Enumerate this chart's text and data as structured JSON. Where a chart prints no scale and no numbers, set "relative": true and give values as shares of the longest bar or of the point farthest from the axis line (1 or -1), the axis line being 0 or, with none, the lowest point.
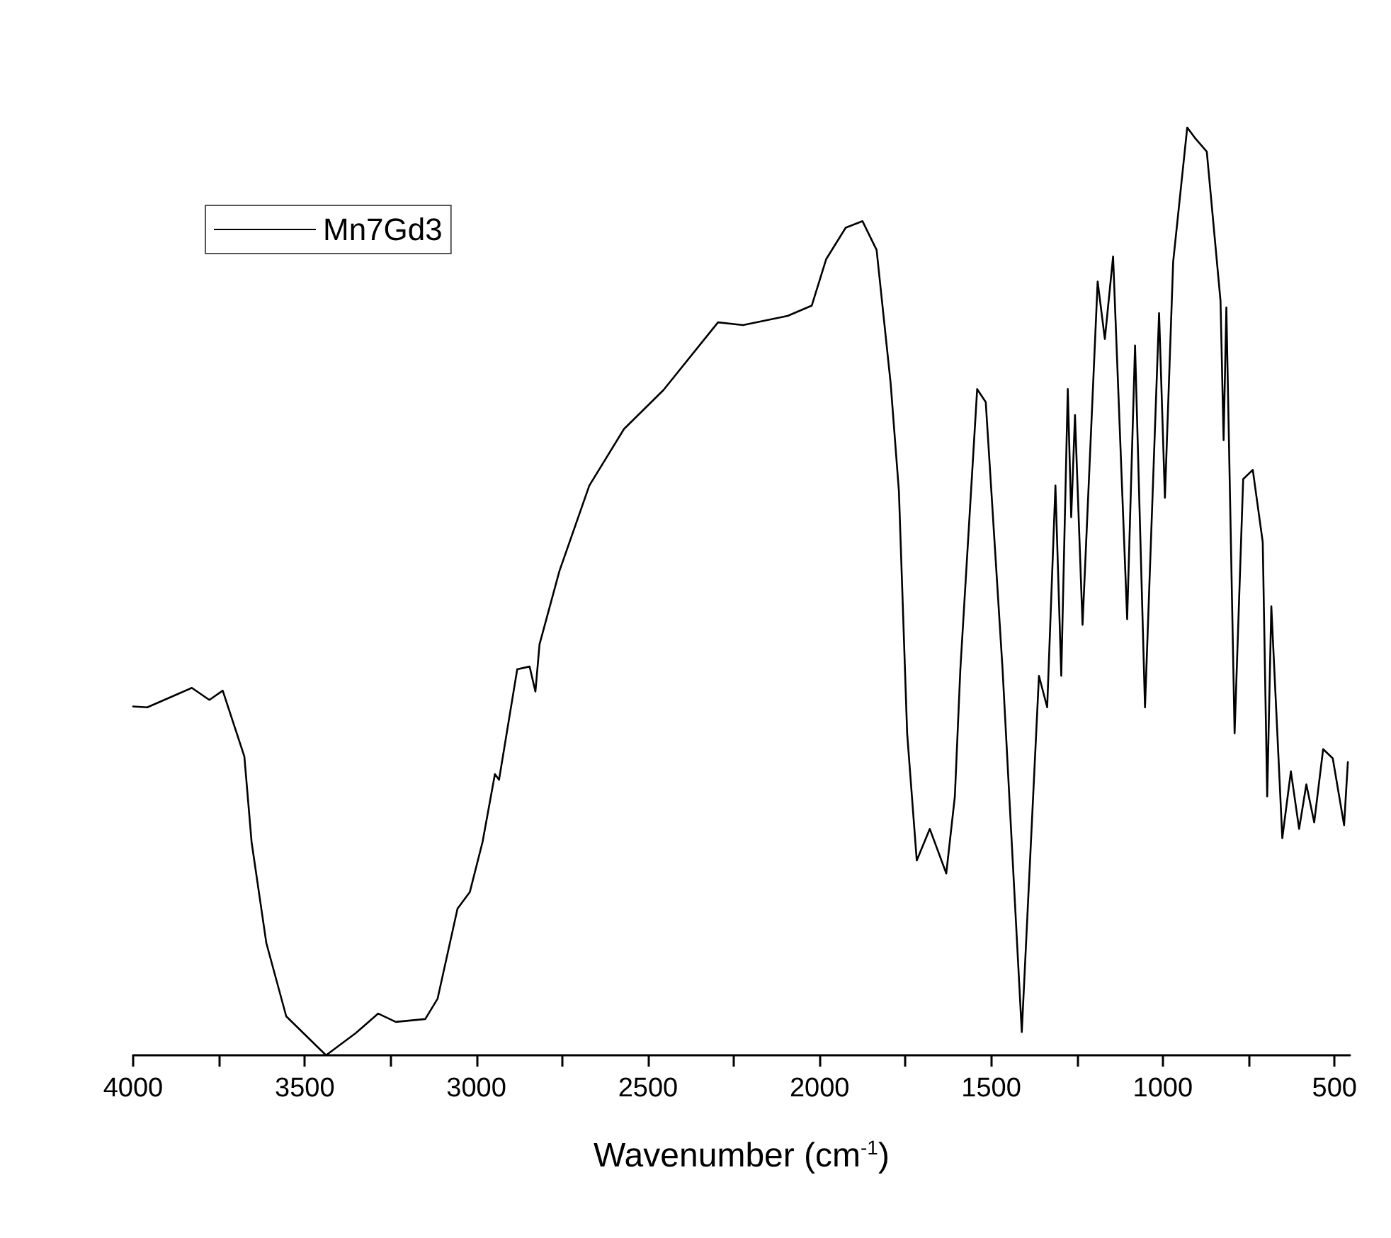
{
  "chart_data": {
    "type": "line",
    "xlabel": "Wavenumber (cm$^{-1}$)",
    "relative": true,
    "legend": "top left",
    "grid": false,
    "marker": "none",
    "line_style": "solid",
    "xlim": [
      4000,
      455
    ],
    "xticks": [
      4000,
      {
        "value": 3750,
        "label": null
      },
      3500,
      {
        "value": 3250,
        "label": null
      },
      3000,
      {
        "value": 2750,
        "label": null
      },
      2500,
      {
        "value": 2250,
        "label": null
      },
      2000,
      {
        "value": 1750,
        "label": null
      },
      1500,
      {
        "value": 1250,
        "label": null
      },
      1000,
      {
        "value": 750,
        "label": null
      },
      500
    ],
    "series": [
      {
        "name": "Mn7Gd3",
        "color": "#000000",
        "x": [
          4000,
          3959,
          3829,
          3778,
          3739,
          3676,
          3655,
          3612,
          3554,
          3438,
          3351,
          3286,
          3235,
          3149,
          3113,
          3055,
          3019,
          2982,
          2946,
          2934,
          2881,
          2845,
          2828,
          2816,
          2758,
          2671,
          2570,
          2455,
          2296,
          2223,
          2093,
          2023,
          1981,
          1924,
          1875,
          1834,
          1793,
          1769,
          1745,
          1717,
          1679,
          1631,
          1606,
          1590,
          1541,
          1516,
          1467,
          1411,
          1361,
          1337,
          1313,
          1296,
          1277,
          1267,
          1256,
          1234,
          1190,
          1169,
          1145,
          1104,
          1081,
          1052,
          1011,
          994,
          970,
          929,
          905,
          872,
          832,
          823,
          815,
          791,
          766,
          738,
          709,
          696,
          684,
          652,
          627,
          603,
          582,
          559,
          533,
          505,
          472,
          461
        ],
        "values": [
          0.376,
          0.375,
          0.396,
          0.383,
          0.393,
          0.322,
          0.23,
          0.121,
          0.042,
          0,
          0.024,
          0.045,
          0.036,
          0.039,
          0.061,
          0.158,
          0.176,
          0.23,
          0.303,
          0.297,
          0.416,
          0.419,
          0.392,
          0.443,
          0.522,
          0.614,
          0.675,
          0.717,
          0.79,
          0.787,
          0.797,
          0.808,
          0.858,
          0.892,
          0.899,
          0.868,
          0.724,
          0.608,
          0.347,
          0.21,
          0.244,
          0.196,
          0.279,
          0.416,
          0.718,
          0.704,
          0.416,
          0.025,
          0.409,
          0.375,
          0.614,
          0.409,
          0.718,
          0.58,
          0.69,
          0.464,
          0.834,
          0.772,
          0.861,
          0.47,
          0.765,
          0.375,
          0.8,
          0.601,
          0.855,
          1,
          0.988,
          0.974,
          0.813,
          0.663,
          0.806,
          0.347,
          0.621,
          0.631,
          0.553,
          0.279,
          0.484,
          0.234,
          0.306,
          0.244,
          0.292,
          0.251,
          0.33,
          0.32,
          0.248,
          0.316
        ]
      }
    ]
  }
}
